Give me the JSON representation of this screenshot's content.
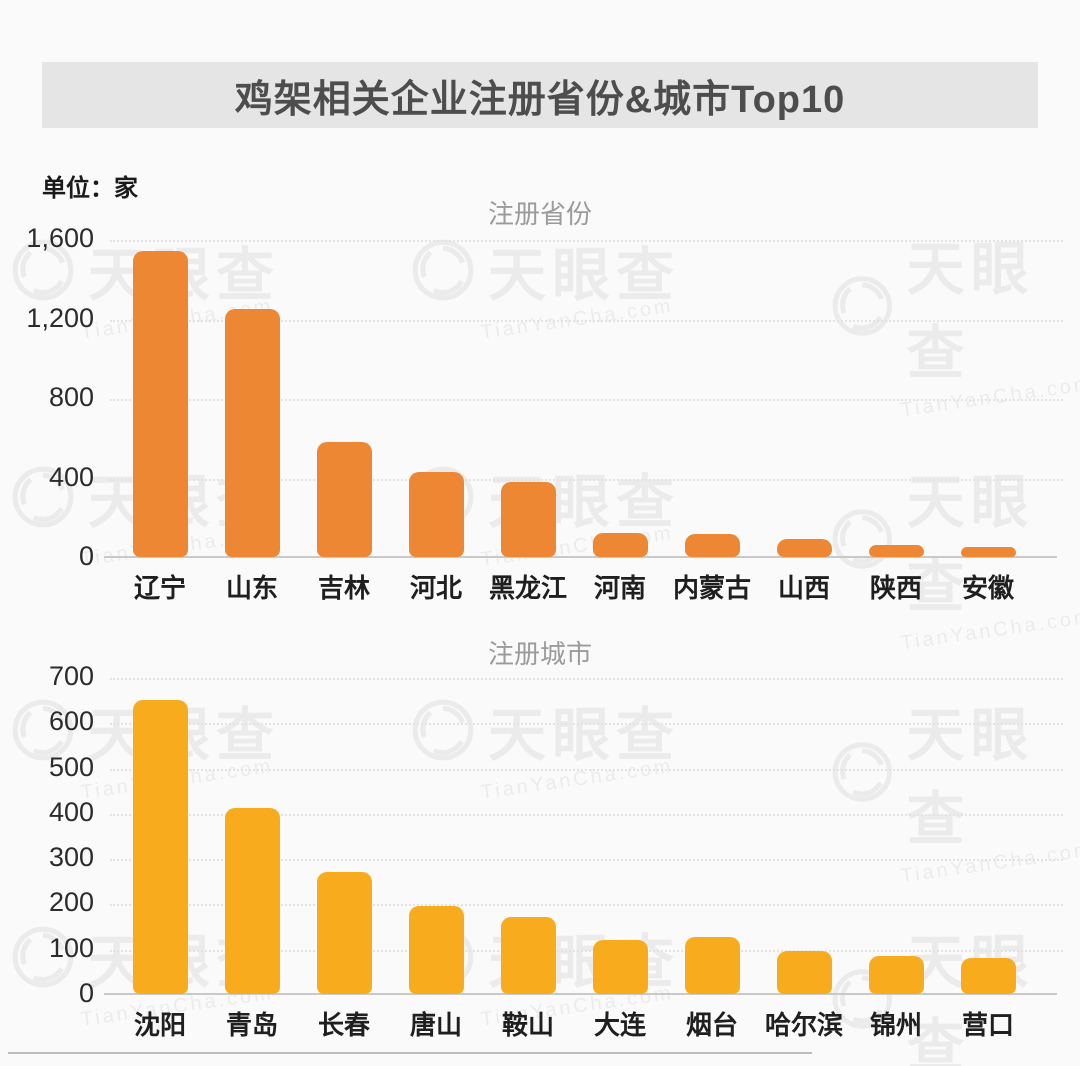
{
  "page": {
    "title": "鸡架相关企业注册省份&城市Top10",
    "unit_label": "单位：家",
    "watermark": {
      "brand": "天眼查",
      "domain": "TianYanCha.com",
      "icon": "aperture-logo-icon"
    }
  },
  "chart_data": [
    {
      "type": "bar",
      "title": "注册省份",
      "unit": "家",
      "categories": [
        "辽宁",
        "山东",
        "吉林",
        "河北",
        "黑龙江",
        "河南",
        "内蒙古",
        "山西",
        "陕西",
        "安徽"
      ],
      "values": [
        1540,
        1250,
        580,
        430,
        375,
        120,
        115,
        90,
        60,
        50
      ],
      "ylim": [
        0,
        1600
      ],
      "yticks": [
        0,
        400,
        800,
        1200,
        1600
      ],
      "ytick_labels": [
        "0",
        "400",
        "800",
        "1,200",
        "1,600"
      ],
      "bar_color": "#ED8733",
      "grid": "horizontal-dotted",
      "legend": "none"
    },
    {
      "type": "bar",
      "title": "注册城市",
      "unit": "家",
      "categories": [
        "沈阳",
        "青岛",
        "长春",
        "唐山",
        "鞍山",
        "大连",
        "烟台",
        "哈尔滨",
        "锦州",
        "营口"
      ],
      "values": [
        650,
        410,
        270,
        195,
        170,
        120,
        125,
        95,
        85,
        80
      ],
      "ylim": [
        0,
        700
      ],
      "yticks": [
        0,
        100,
        200,
        300,
        400,
        500,
        600,
        700
      ],
      "ytick_labels": [
        "0",
        "100",
        "200",
        "300",
        "400",
        "500",
        "600",
        "700"
      ],
      "bar_color": "#F8AB1D",
      "grid": "horizontal-dotted",
      "legend": "none"
    }
  ],
  "colors": {
    "background": "#FAFAFA",
    "title_band_bg": "#E5E5E5",
    "title_text": "#4D4D4D",
    "subtitle_text": "#9B9B9B",
    "axis_line": "#C9C9C9",
    "gridline": "#E3E3E3",
    "tick_text": "#2B2B2B",
    "category_text": "#1F1F1F",
    "province_bar": "#ED8733",
    "city_bar": "#F8AB1D"
  }
}
